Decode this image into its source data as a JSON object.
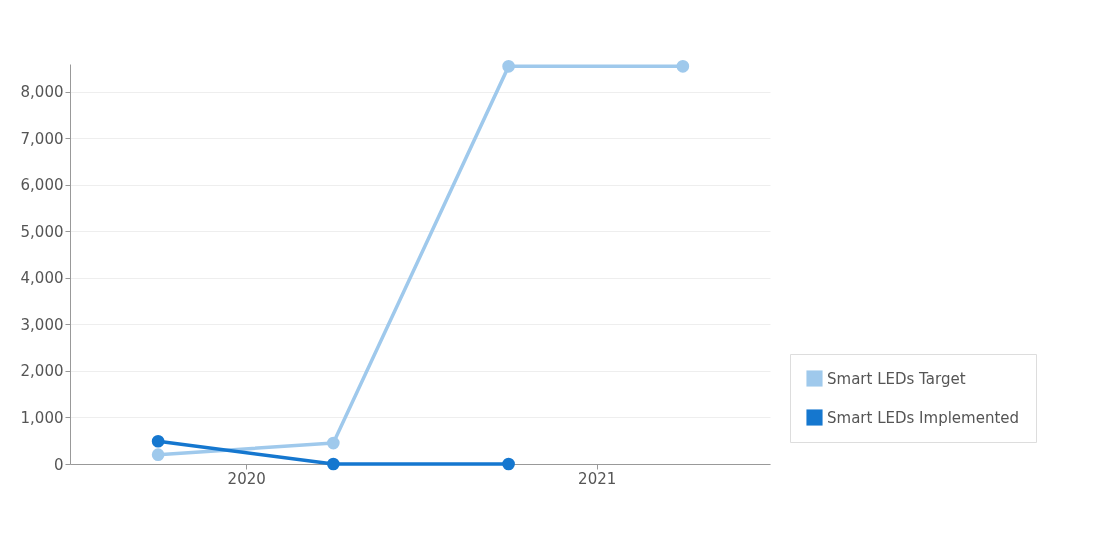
{
  "chart_data": {
    "type": "line",
    "x": [
      "2019-10",
      "2020-04",
      "2020-10",
      "2021-04"
    ],
    "series": [
      {
        "name": "Smart LEDs Target",
        "color": "#9fc9ec",
        "values": [
          200,
          450,
          8550,
          8550
        ]
      },
      {
        "name": "Smart LEDs Implemented",
        "color": "#1577cf",
        "values": [
          490,
          0,
          0,
          null
        ]
      }
    ],
    "xlim": [
      "2019-07",
      "2021-07"
    ],
    "xticks": [
      "2020",
      "2021"
    ],
    "ylim": [
      0,
      8600
    ],
    "yticks": [
      0,
      {
        "value": 1000,
        "label": "1,000"
      },
      {
        "value": 2000,
        "label": "2,000"
      },
      {
        "value": 3000,
        "label": "3,000"
      },
      {
        "value": 4000,
        "label": "4,000"
      },
      {
        "value": 5000,
        "label": "5,000"
      },
      {
        "value": 6000,
        "label": "6,000"
      },
      {
        "value": 7000,
        "label": "7,000"
      },
      {
        "value": 8000,
        "label": "8,000"
      }
    ],
    "grid": "y",
    "legend": "bottom right",
    "marker": "circle",
    "line_style": "solid"
  }
}
